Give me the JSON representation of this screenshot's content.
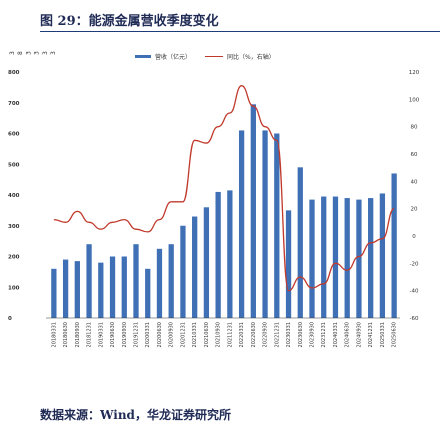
{
  "figure": {
    "title": "图 29：能源金属营收季度变化",
    "source": "数据来源：Wind，华龙证券研究所"
  },
  "colors": {
    "bar": "#3f6fb5",
    "line": "#c0392b",
    "rule": "#1f3c7a"
  },
  "chart_data": {
    "type": "bar",
    "legend": [
      "营收（亿元）",
      "同比（%，右轴）"
    ],
    "legend_placement": "top-center",
    "categories": [
      "2018Q1",
      "2018Q2",
      "2018Q3",
      "2018Q4",
      "2019Q1",
      "2019Q2",
      "2019Q3",
      "2019Q4",
      "2020Q1",
      "2020Q2",
      "2020Q3",
      "2020Q4",
      "2021Q1",
      "2021Q2",
      "2021Q3",
      "2021Q4",
      "2022Q1",
      "2022Q2",
      "2022Q3",
      "2022Q4",
      "2023Q1",
      "2023Q2",
      "2023Q3",
      "2023Q4",
      "2024Q1",
      "2024Q2",
      "2024Q3",
      "2024Q4",
      "2025Q1",
      "2025Q2"
    ],
    "series": [
      {
        "name": "营收（亿元）",
        "axis": "left",
        "values": [
          160,
          190,
          185,
          240,
          180,
          200,
          200,
          240,
          160,
          225,
          240,
          300,
          330,
          360,
          410,
          415,
          610,
          695,
          610,
          600,
          350,
          490,
          385,
          395,
          395,
          390,
          385,
          390,
          405,
          470
        ]
      },
      {
        "name": "同比（%，右轴）",
        "axis": "right",
        "values": [
          12,
          10,
          18,
          10,
          5,
          10,
          12,
          5,
          3,
          12,
          25,
          25,
          70,
          68,
          80,
          90,
          110,
          95,
          80,
          70,
          -40,
          -30,
          -38,
          -35,
          -20,
          -25,
          -15,
          -5,
          -2,
          20
        ]
      }
    ],
    "y_left": {
      "min": 0,
      "max": 800,
      "ticks": [
        0,
        100,
        200,
        300,
        400,
        500,
        600,
        700,
        800
      ]
    },
    "y_right": {
      "min": -60,
      "max": 120,
      "ticks": [
        -60,
        -40,
        -20,
        0,
        20,
        40,
        60,
        80,
        100,
        120
      ]
    },
    "y_extra_left_ticks": [
      "3",
      "8",
      "3",
      "3",
      "3",
      "3"
    ],
    "x_tick_format": "yyyymmdd",
    "x_tick_labels": [
      "20180331",
      "20180630",
      "20180930",
      "20181231",
      "20190331",
      "20190630",
      "20190930",
      "20191231",
      "20200331",
      "20200630",
      "20200930",
      "20201231",
      "20210331",
      "20210630",
      "20210930",
      "20211231",
      "20220331",
      "20220630",
      "20220930",
      "20221231",
      "20230331",
      "20230630",
      "20230930",
      "20231231",
      "20240331",
      "20240630",
      "20240930",
      "20241231",
      "20250331",
      "20250630"
    ],
    "grid": false
  }
}
